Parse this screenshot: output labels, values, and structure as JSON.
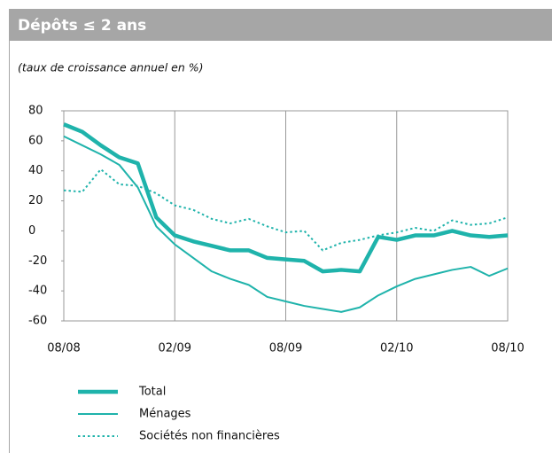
{
  "chart_data": {
    "type": "line",
    "title": "Dépôts ≤ 2 ans",
    "subtitle": "(taux de croissance annuel en %)",
    "categories": [
      "08/08",
      null,
      null,
      null,
      null,
      null,
      "02/09",
      null,
      null,
      null,
      null,
      null,
      "08/09",
      null,
      null,
      null,
      null,
      null,
      "02/10",
      null,
      null,
      null,
      null,
      null,
      "08/10"
    ],
    "ylim": [
      -60,
      80
    ],
    "yticks": [
      -60,
      -40,
      -20,
      0,
      20,
      40,
      60,
      80
    ],
    "series": [
      {
        "name": "Total",
        "color": "#1fb3ab",
        "values": [
          71,
          66,
          57,
          49,
          45,
          9,
          -3,
          -7,
          -10,
          -13,
          -13,
          -18,
          -19,
          -20,
          -27,
          -26,
          -27,
          -4,
          -6,
          -3,
          -3,
          0,
          -3,
          -4,
          -3
        ]
      },
      {
        "name": "Ménages",
        "color": "#1fb3ab",
        "values": [
          63,
          57,
          51,
          44,
          29,
          3,
          -9,
          -18,
          -27,
          -32,
          -36,
          -44,
          -47,
          -50,
          -52,
          -54,
          -51,
          -43,
          -37,
          -32,
          -29,
          -26,
          -24,
          -30,
          -25
        ]
      },
      {
        "name": "Sociétés non financières",
        "color": "#1fb3ab",
        "values": [
          27,
          26,
          41,
          31,
          30,
          25,
          17,
          14,
          8,
          5,
          8,
          3,
          -1,
          0,
          -13,
          -8,
          -6,
          -3,
          -1,
          2,
          0,
          7,
          4,
          5,
          9
        ]
      }
    ]
  }
}
